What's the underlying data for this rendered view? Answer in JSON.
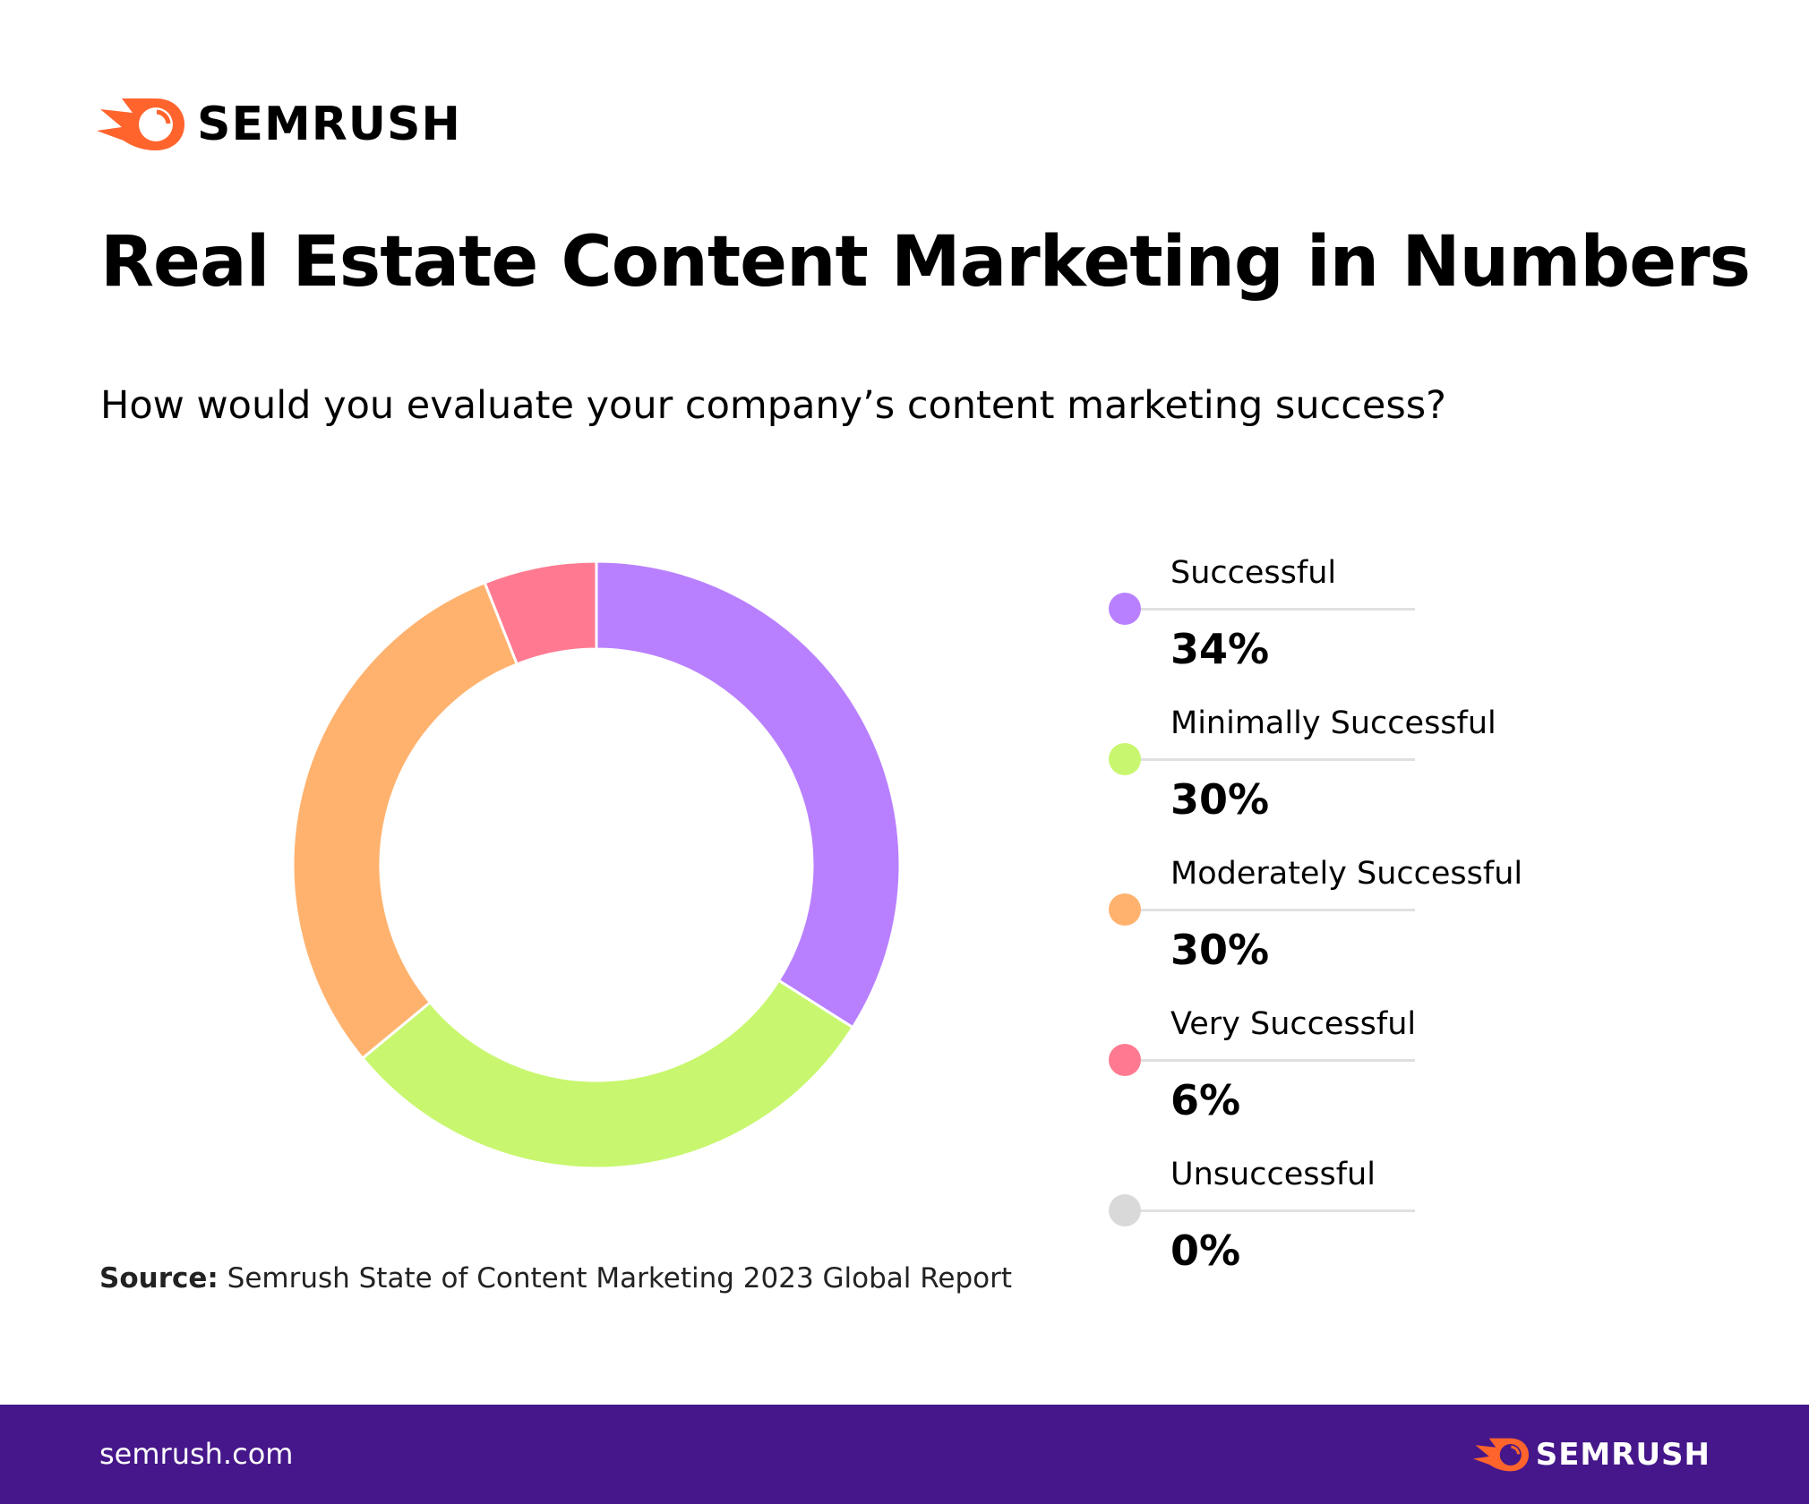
{
  "brand": {
    "name": "SEMRUSH",
    "accent": "#ff642d"
  },
  "title": "Real Estate Content Marketing in Numbers",
  "subtitle": "How would you evaluate your company’s content marketing success?",
  "chart_data": {
    "type": "pie",
    "donut": true,
    "start": "top, clockwise",
    "legend_position": "right",
    "slices": [
      {
        "label": "Successful",
        "value": 34,
        "display": "34%",
        "color": "#b880ff"
      },
      {
        "label": "Minimally Successful",
        "value": 30,
        "display": "30%",
        "color": "#c8f76f"
      },
      {
        "label": "Moderately Successful",
        "value": 30,
        "display": "30%",
        "color": "#ffb26e"
      },
      {
        "label": "Very Successful",
        "value": 6,
        "display": "6%",
        "color": "#ff7a90"
      },
      {
        "label": "Unsuccessful",
        "value": 0,
        "display": "0%",
        "color": "#d9d9d9"
      }
    ]
  },
  "source": {
    "label": "Source:",
    "text": " Semrush State of Content Marketing 2023 Global Report"
  },
  "footer": {
    "site": "semrush.com",
    "background": "#45178a"
  }
}
